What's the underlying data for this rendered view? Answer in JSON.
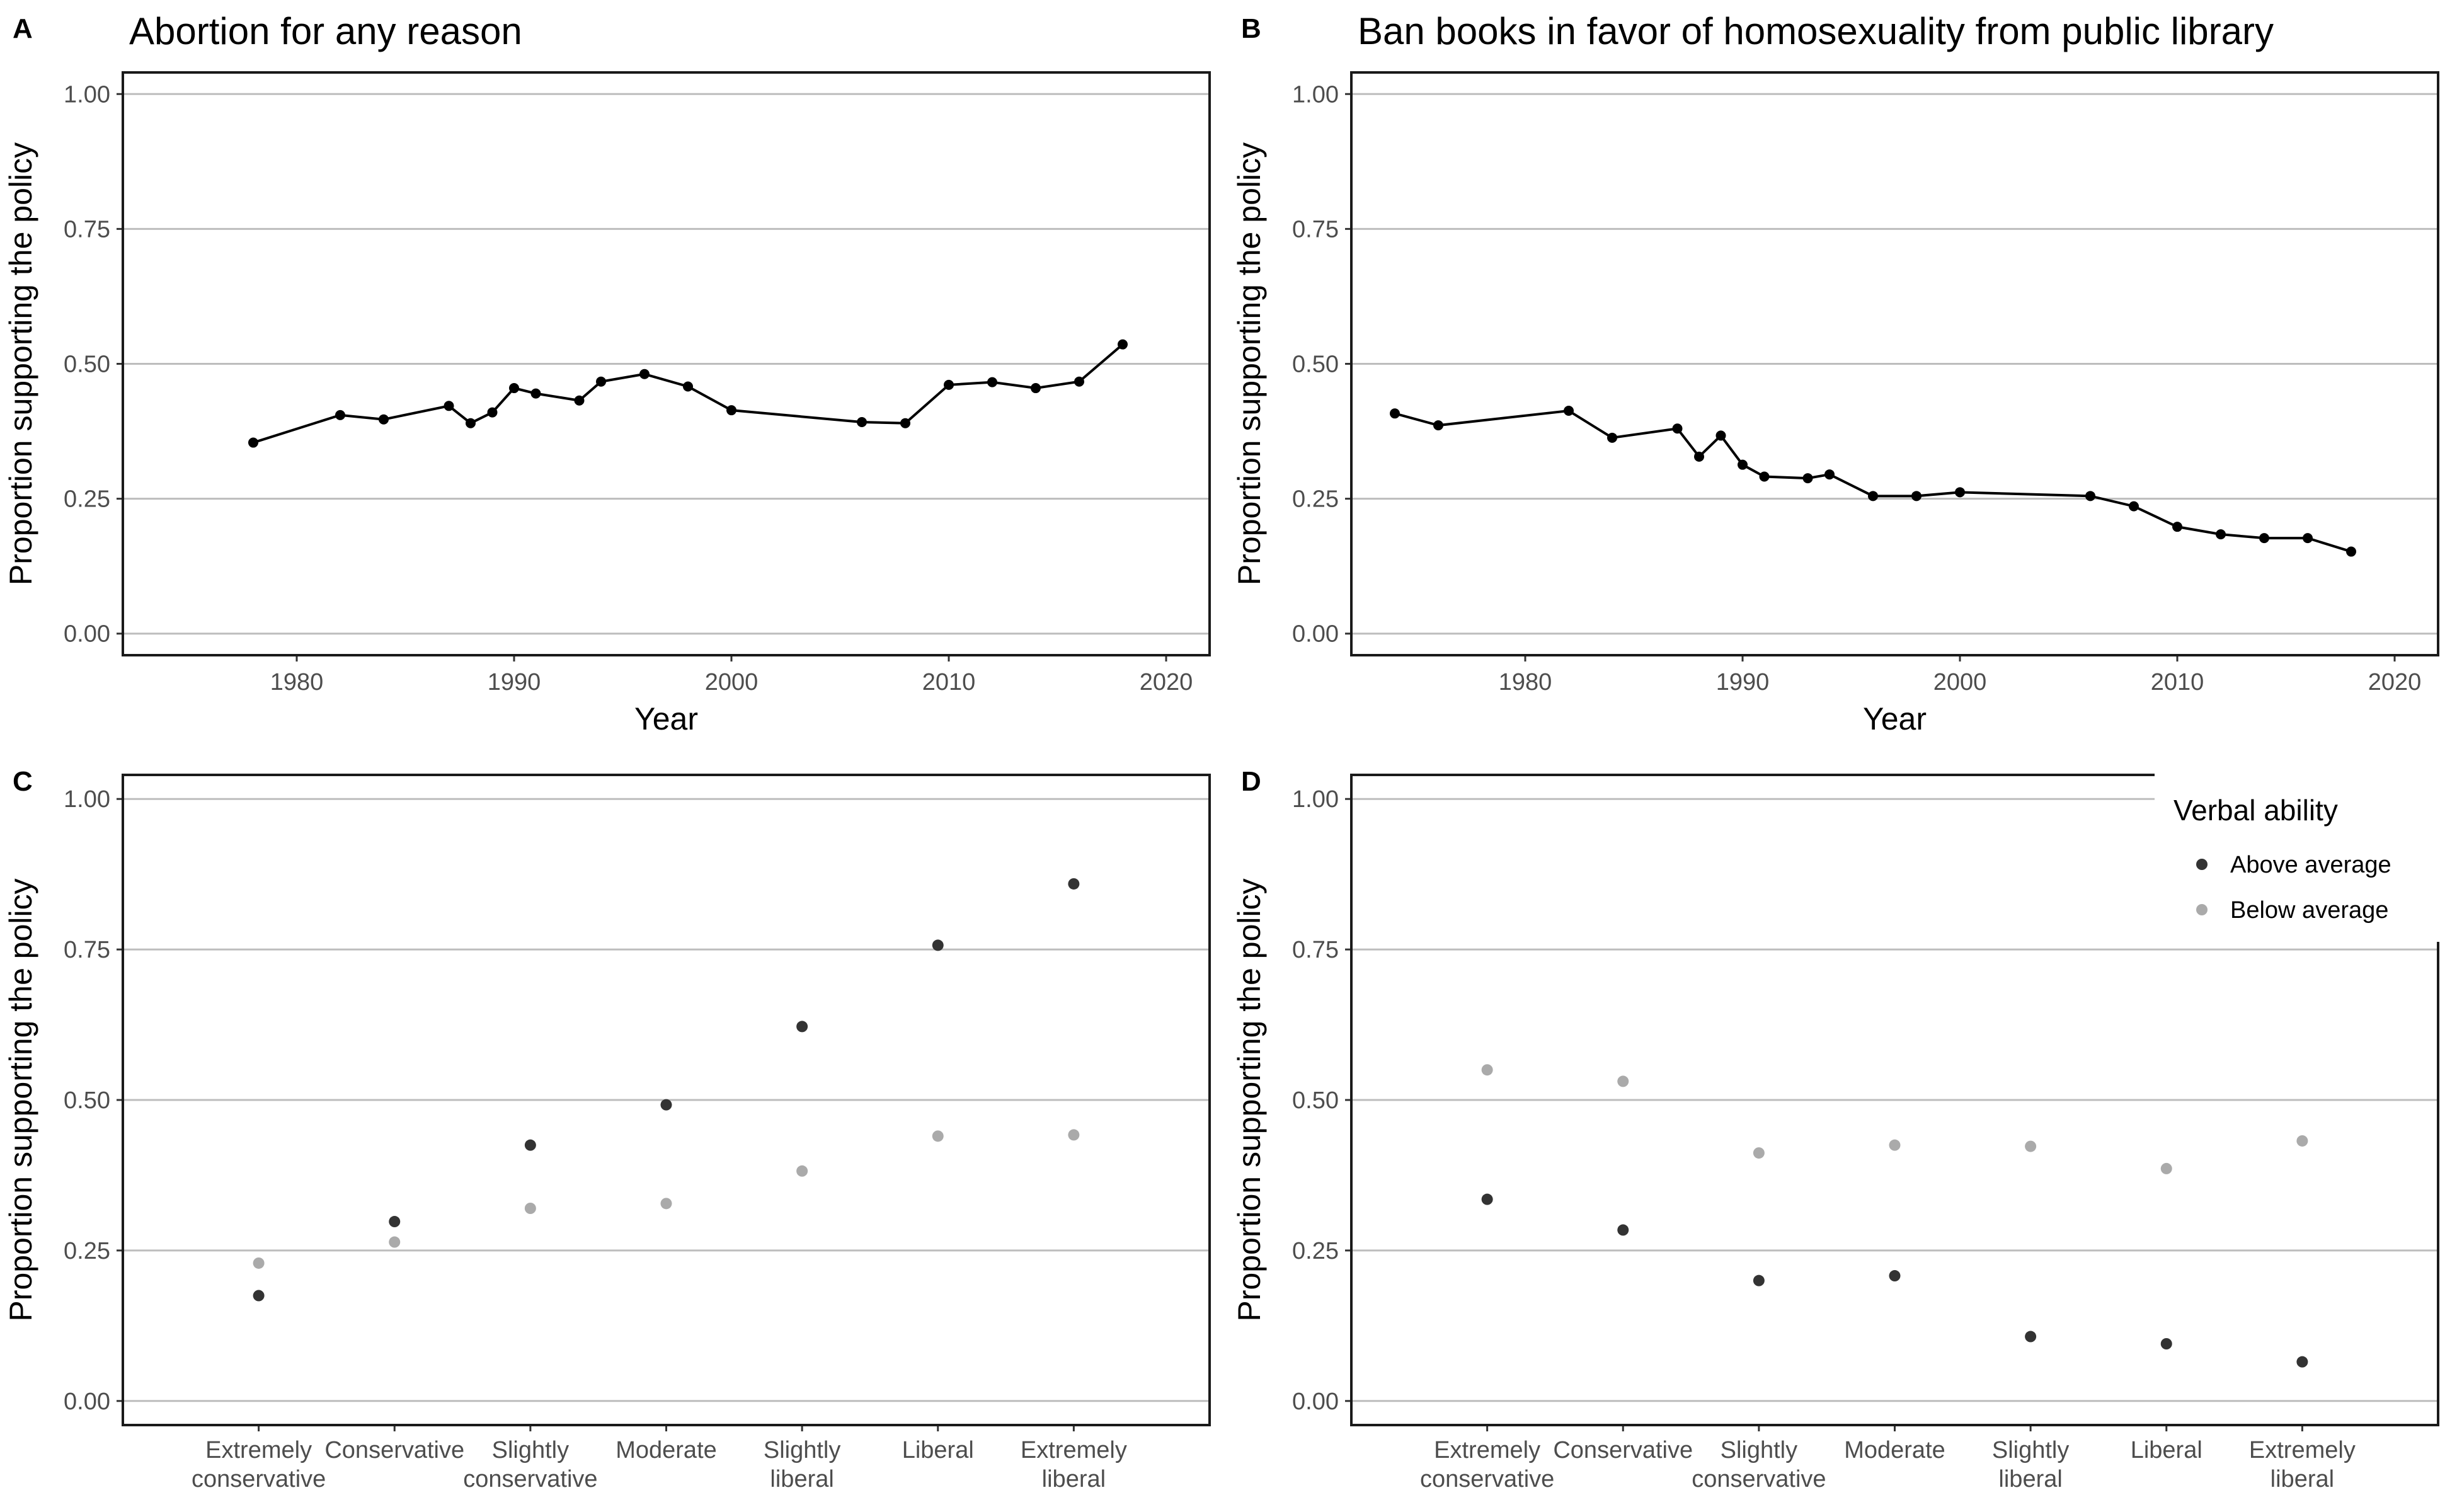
{
  "colors": {
    "above_average": "#333333",
    "below_average": "#aaaaaa",
    "line": "#000000",
    "grid": "#bdbdbd"
  },
  "legend": {
    "title": "Verbal ability",
    "items": [
      "Above average",
      "Below average"
    ]
  },
  "chart_data": [
    {
      "panel": "A",
      "type": "line",
      "title": "Abortion for any reason",
      "xlabel": "Year",
      "ylabel": "Proportion supporting the policy",
      "xlim": [
        1972,
        2022
      ],
      "ylim": [
        -0.04,
        1.04
      ],
      "xticks": [
        1980,
        1990,
        2000,
        2010,
        2020
      ],
      "yticks": [
        "0.00",
        "0.25",
        "0.50",
        "0.75",
        "1.00"
      ],
      "grid": "horizontal",
      "x": [
        1978,
        1982,
        1984,
        1987,
        1988,
        1989,
        1990,
        1991,
        1993,
        1994,
        1996,
        1998,
        2000,
        2006,
        2008,
        2010,
        2012,
        2014,
        2016,
        2018
      ],
      "y": [
        0.354,
        0.405,
        0.397,
        0.422,
        0.39,
        0.41,
        0.455,
        0.445,
        0.432,
        0.467,
        0.481,
        0.458,
        0.414,
        0.392,
        0.39,
        0.461,
        0.466,
        0.455,
        0.467,
        0.536
      ]
    },
    {
      "panel": "B",
      "type": "line",
      "title": "Ban books in favor of homosexuality from public library",
      "xlabel": "Year",
      "ylabel": "Proportion supporting the policy",
      "xlim": [
        1972,
        2022
      ],
      "ylim": [
        -0.04,
        1.04
      ],
      "xticks": [
        1980,
        1990,
        2000,
        2010,
        2020
      ],
      "yticks": [
        "0.00",
        "0.25",
        "0.50",
        "0.75",
        "1.00"
      ],
      "grid": "horizontal",
      "x": [
        1974,
        1976,
        1982,
        1984,
        1987,
        1988,
        1989,
        1990,
        1991,
        1993,
        1994,
        1996,
        1998,
        2000,
        2006,
        2008,
        2010,
        2012,
        2014,
        2016,
        2018
      ],
      "y": [
        0.408,
        0.386,
        0.413,
        0.363,
        0.38,
        0.328,
        0.367,
        0.313,
        0.291,
        0.288,
        0.295,
        0.255,
        0.255,
        0.262,
        0.255,
        0.236,
        0.198,
        0.184,
        0.177,
        0.177,
        0.152
      ]
    },
    {
      "panel": "C",
      "type": "scatter",
      "title": "",
      "xlabel": "",
      "ylabel": "Proportion supporting the policy",
      "ylim": [
        -0.04,
        1.04
      ],
      "yticks": [
        "0.00",
        "0.25",
        "0.50",
        "0.75",
        "1.00"
      ],
      "grid": "horizontal",
      "categories": [
        "Extremely\nconservative",
        "Conservative",
        "Slightly\nconservative",
        "Moderate",
        "Slightly\nliberal",
        "Liberal",
        "Extremely\nliberal"
      ],
      "series": [
        {
          "name": "Above average",
          "values": [
            0.175,
            0.298,
            0.425,
            0.492,
            0.622,
            0.757,
            0.859
          ]
        },
        {
          "name": "Below average",
          "values": [
            0.229,
            0.264,
            0.32,
            0.328,
            0.382,
            0.44,
            0.442
          ]
        }
      ]
    },
    {
      "panel": "D",
      "type": "scatter",
      "title": "",
      "xlabel": "",
      "ylabel": "Proportion supporting the policy",
      "ylim": [
        -0.04,
        1.04
      ],
      "yticks": [
        "0.00",
        "0.25",
        "0.50",
        "0.75",
        "1.00"
      ],
      "grid": "horizontal",
      "legend_position": "top-right",
      "categories": [
        "Extremely\nconservative",
        "Conservative",
        "Slightly\nconservative",
        "Moderate",
        "Slightly\nliberal",
        "Liberal",
        "Extremely\nliberal"
      ],
      "series": [
        {
          "name": "Above average",
          "values": [
            0.335,
            0.284,
            0.2,
            0.208,
            0.107,
            0.095,
            0.065
          ]
        },
        {
          "name": "Below average",
          "values": [
            0.55,
            0.531,
            0.412,
            0.425,
            0.423,
            0.386,
            0.432
          ]
        }
      ]
    }
  ]
}
